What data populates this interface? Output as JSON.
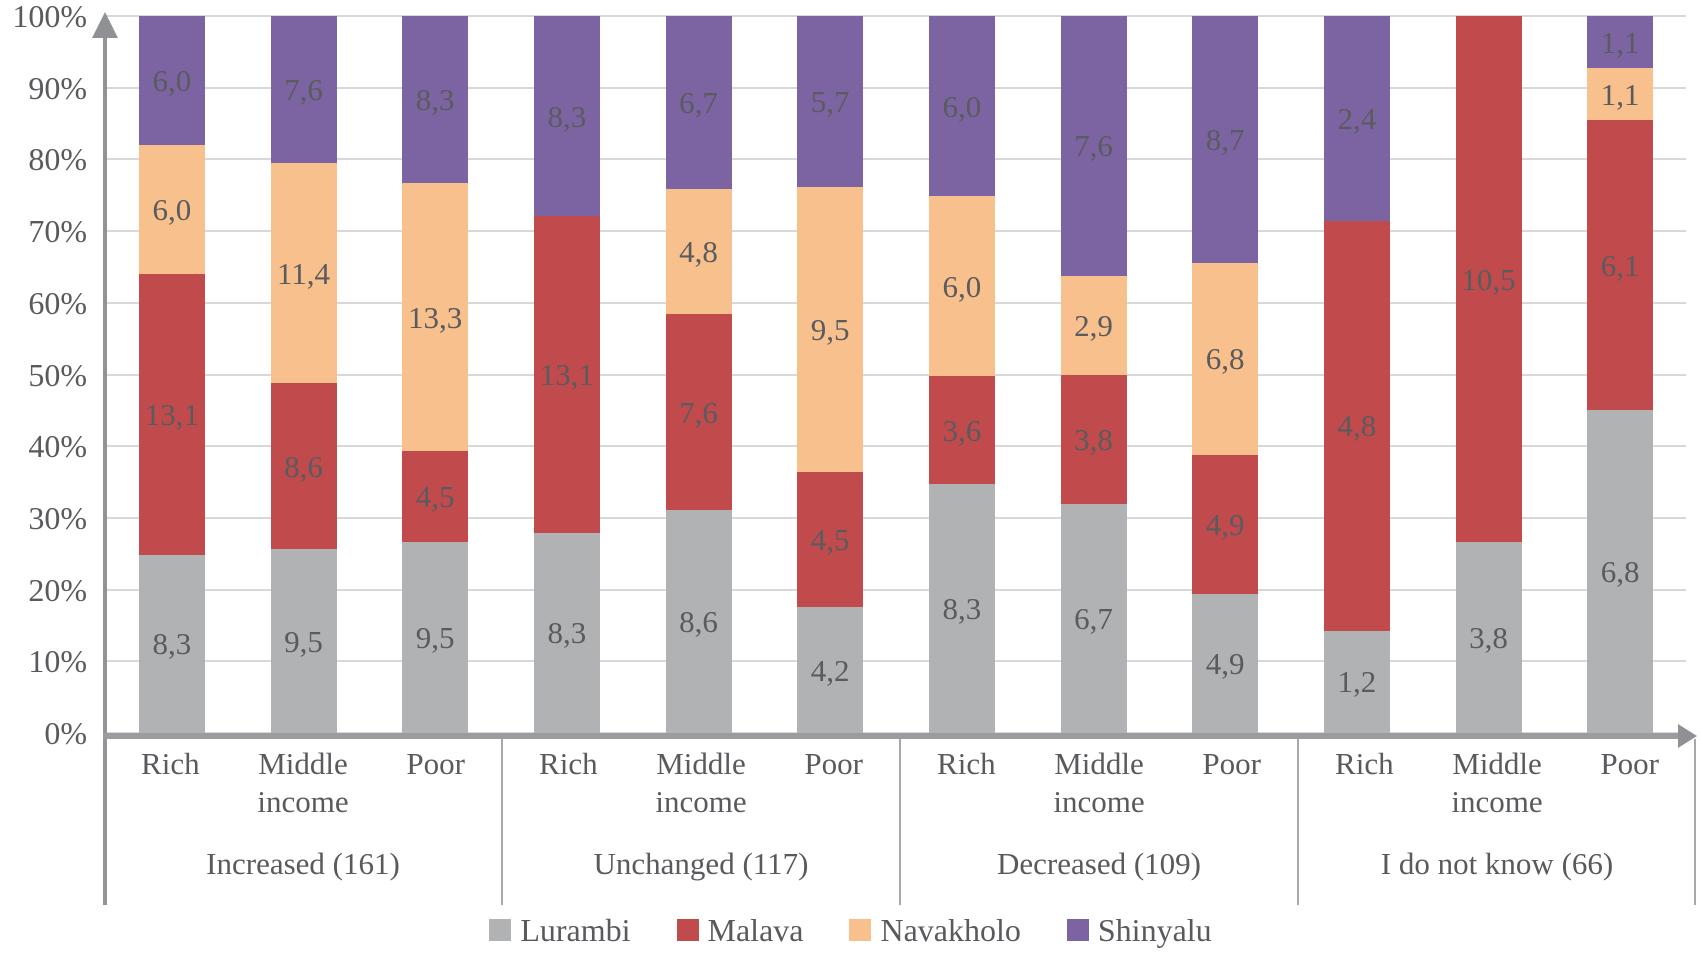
{
  "chart_data": {
    "type": "bar",
    "stacked": "percent",
    "orientation": "vertical",
    "decimal_separator": ",",
    "y_axis": {
      "ticks": [
        "100%",
        "90%",
        "80%",
        "70%",
        "60%",
        "50%",
        "40%",
        "30%",
        "20%",
        "10%",
        "0%"
      ],
      "min": 0,
      "max": 100,
      "grid": true
    },
    "series": [
      {
        "name": "Lurambi",
        "color": "#b1b2b4"
      },
      {
        "name": "Malava",
        "color": "#c14a4c"
      },
      {
        "name": "Navakholo",
        "color": "#f8c08c"
      },
      {
        "name": "Shinyalu",
        "color": "#7c64a3"
      }
    ],
    "groups": [
      {
        "label": "Increased (161)",
        "bars": [
          {
            "category": "Rich",
            "values": [
              8.3,
              13.1,
              6.0,
              6.0
            ],
            "labels": [
              "8,3",
              "13,1",
              "6,0",
              "6,0"
            ]
          },
          {
            "category": "Middle income",
            "values": [
              9.5,
              8.6,
              11.4,
              7.6
            ],
            "labels": [
              "9,5",
              "8,6",
              "11,4",
              "7,6"
            ]
          },
          {
            "category": "Poor",
            "values": [
              9.5,
              4.5,
              13.3,
              8.3
            ],
            "labels": [
              "9,5",
              "4,5",
              "13,3",
              "8,3"
            ]
          }
        ]
      },
      {
        "label": "Unchanged (117)",
        "bars": [
          {
            "category": "Rich",
            "values": [
              8.3,
              13.1,
              0,
              8.3
            ],
            "labels": [
              "8,3",
              "13,1",
              null,
              "8,3"
            ]
          },
          {
            "category": "Middle income",
            "values": [
              8.6,
              7.6,
              4.8,
              6.7
            ],
            "labels": [
              "8,6",
              "7,6",
              "4,8",
              "6,7"
            ]
          },
          {
            "category": "Poor",
            "values": [
              4.2,
              4.5,
              9.5,
              5.7
            ],
            "labels": [
              "4,2",
              "4,5",
              "9,5",
              "5,7"
            ]
          }
        ]
      },
      {
        "label": "Decreased (109)",
        "bars": [
          {
            "category": "Rich",
            "values": [
              8.3,
              3.6,
              6.0,
              6.0
            ],
            "labels": [
              "8,3",
              "3,6",
              "6,0",
              "6,0"
            ]
          },
          {
            "category": "Middle income",
            "values": [
              6.7,
              3.8,
              2.9,
              7.6
            ],
            "labels": [
              "6,7",
              "3,8",
              "2,9",
              "7,6"
            ]
          },
          {
            "category": "Poor",
            "values": [
              4.9,
              4.9,
              6.8,
              8.7
            ],
            "labels": [
              "4,9",
              "4,9",
              "6,8",
              "8,7"
            ]
          }
        ]
      },
      {
        "label": "I do not know (66)",
        "bars": [
          {
            "category": "Rich",
            "values": [
              1.2,
              4.8,
              0,
              2.4
            ],
            "labels": [
              "1,2",
              "4,8",
              null,
              "2,4"
            ]
          },
          {
            "category": "Middle income",
            "values": [
              3.8,
              10.5,
              0,
              0
            ],
            "labels": [
              "3,8",
              "10,5",
              null,
              null
            ]
          },
          {
            "category": "Poor",
            "values": [
              6.8,
              6.1,
              1.1,
              1.1
            ],
            "labels": [
              "6,8",
              "6,1",
              "1,1",
              "1,1"
            ]
          }
        ]
      }
    ],
    "legend": {
      "position": "bottom",
      "entries": [
        "Lurambi",
        "Malava",
        "Navakholo",
        "Shinyalu"
      ]
    },
    "style_colors": {
      "gridline": "#d8d8da",
      "axis": "#9b9c9f",
      "text": "#595a5d"
    }
  }
}
